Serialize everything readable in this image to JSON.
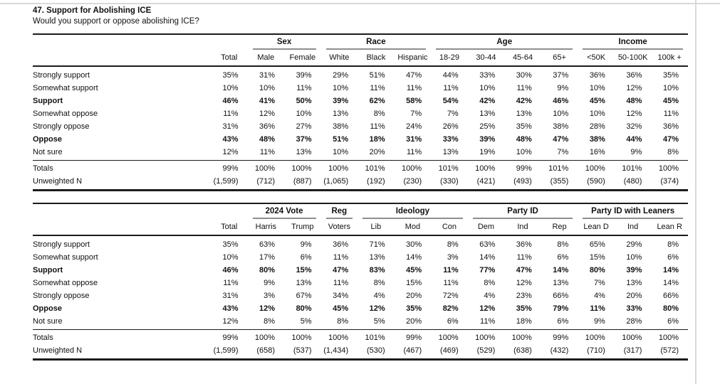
{
  "header": {
    "title": "47. Support for Abolishing ICE",
    "subtitle": "Would you support or oppose abolishing ICE?"
  },
  "colors": {
    "rule_dark": "#1c1c1c",
    "group_underline": "#8f8f8f",
    "page_divider": "#d9d9d9",
    "background": "#ffffff"
  },
  "tables": [
    {
      "name": "demographics-crosstab",
      "groups": [
        {
          "label": "Sex",
          "span": 2
        },
        {
          "label": "Race",
          "span": 3
        },
        {
          "label": "Age",
          "span": 4
        },
        {
          "label": "Income",
          "span": 3
        }
      ],
      "columns": [
        "Total",
        "Male",
        "Female",
        "White",
        "Black",
        "Hispanic",
        "18-29",
        "30-44",
        "45-64",
        "65+",
        "<50K",
        "50-100K",
        "100k +"
      ],
      "rows": [
        {
          "label": "Strongly support",
          "bold": false,
          "values": [
            "35%",
            "31%",
            "39%",
            "29%",
            "51%",
            "47%",
            "44%",
            "33%",
            "30%",
            "37%",
            "36%",
            "36%",
            "35%"
          ]
        },
        {
          "label": "Somewhat support",
          "bold": false,
          "values": [
            "10%",
            "10%",
            "11%",
            "10%",
            "11%",
            "11%",
            "11%",
            "10%",
            "11%",
            "9%",
            "10%",
            "12%",
            "10%"
          ]
        },
        {
          "label": "Support",
          "bold": true,
          "values": [
            "46%",
            "41%",
            "50%",
            "39%",
            "62%",
            "58%",
            "54%",
            "42%",
            "42%",
            "46%",
            "45%",
            "48%",
            "45%"
          ]
        },
        {
          "label": "Somewhat oppose",
          "bold": false,
          "values": [
            "11%",
            "12%",
            "10%",
            "13%",
            "8%",
            "7%",
            "7%",
            "13%",
            "13%",
            "10%",
            "10%",
            "12%",
            "11%"
          ]
        },
        {
          "label": "Strongly oppose",
          "bold": false,
          "values": [
            "31%",
            "36%",
            "27%",
            "38%",
            "11%",
            "24%",
            "26%",
            "25%",
            "35%",
            "38%",
            "28%",
            "32%",
            "36%"
          ]
        },
        {
          "label": "Oppose",
          "bold": true,
          "values": [
            "43%",
            "48%",
            "37%",
            "51%",
            "18%",
            "31%",
            "33%",
            "39%",
            "48%",
            "47%",
            "38%",
            "44%",
            "47%"
          ]
        },
        {
          "label": "Not sure",
          "bold": false,
          "values": [
            "12%",
            "11%",
            "13%",
            "10%",
            "20%",
            "11%",
            "13%",
            "19%",
            "10%",
            "7%",
            "16%",
            "9%",
            "8%"
          ]
        }
      ],
      "footer": [
        {
          "label": "Totals",
          "values": [
            "99%",
            "100%",
            "100%",
            "100%",
            "101%",
            "100%",
            "101%",
            "100%",
            "99%",
            "101%",
            "100%",
            "101%",
            "100%"
          ]
        },
        {
          "label": "Unweighted N",
          "values": [
            "(1,599)",
            "(712)",
            "(887)",
            "(1,065)",
            "(192)",
            "(230)",
            "(330)",
            "(421)",
            "(493)",
            "(355)",
            "(590)",
            "(480)",
            "(374)"
          ]
        }
      ]
    },
    {
      "name": "politics-crosstab",
      "groups": [
        {
          "label": "2024 Vote",
          "span": 2
        },
        {
          "label": "Reg",
          "span": 1
        },
        {
          "label": "Ideology",
          "span": 3
        },
        {
          "label": "Party ID",
          "span": 3
        },
        {
          "label": "Party ID with Leaners",
          "span": 3
        }
      ],
      "columns": [
        "Total",
        "Harris",
        "Trump",
        "Voters",
        "Lib",
        "Mod",
        "Con",
        "Dem",
        "Ind",
        "Rep",
        "Lean D",
        "Ind",
        "Lean R"
      ],
      "rows": [
        {
          "label": "Strongly support",
          "bold": false,
          "values": [
            "35%",
            "63%",
            "9%",
            "36%",
            "71%",
            "30%",
            "8%",
            "63%",
            "36%",
            "8%",
            "65%",
            "29%",
            "8%"
          ]
        },
        {
          "label": "Somewhat support",
          "bold": false,
          "values": [
            "10%",
            "17%",
            "6%",
            "11%",
            "13%",
            "14%",
            "3%",
            "14%",
            "11%",
            "6%",
            "15%",
            "10%",
            "6%"
          ]
        },
        {
          "label": "Support",
          "bold": true,
          "values": [
            "46%",
            "80%",
            "15%",
            "47%",
            "83%",
            "45%",
            "11%",
            "77%",
            "47%",
            "14%",
            "80%",
            "39%",
            "14%"
          ]
        },
        {
          "label": "Somewhat oppose",
          "bold": false,
          "values": [
            "11%",
            "9%",
            "13%",
            "11%",
            "8%",
            "15%",
            "11%",
            "8%",
            "12%",
            "13%",
            "7%",
            "13%",
            "14%"
          ]
        },
        {
          "label": "Strongly oppose",
          "bold": false,
          "values": [
            "31%",
            "3%",
            "67%",
            "34%",
            "4%",
            "20%",
            "72%",
            "4%",
            "23%",
            "66%",
            "4%",
            "20%",
            "66%"
          ]
        },
        {
          "label": "Oppose",
          "bold": true,
          "values": [
            "43%",
            "12%",
            "80%",
            "45%",
            "12%",
            "35%",
            "82%",
            "12%",
            "35%",
            "79%",
            "11%",
            "33%",
            "80%"
          ]
        },
        {
          "label": "Not sure",
          "bold": false,
          "values": [
            "12%",
            "8%",
            "5%",
            "8%",
            "5%",
            "20%",
            "6%",
            "11%",
            "18%",
            "6%",
            "9%",
            "28%",
            "6%"
          ]
        }
      ],
      "footer": [
        {
          "label": "Totals",
          "values": [
            "99%",
            "100%",
            "100%",
            "100%",
            "101%",
            "99%",
            "100%",
            "100%",
            "100%",
            "99%",
            "100%",
            "100%",
            "100%"
          ]
        },
        {
          "label": "Unweighted N",
          "values": [
            "(1,599)",
            "(658)",
            "(537)",
            "(1,434)",
            "(530)",
            "(467)",
            "(469)",
            "(529)",
            "(638)",
            "(432)",
            "(710)",
            "(317)",
            "(572)"
          ]
        }
      ]
    }
  ]
}
